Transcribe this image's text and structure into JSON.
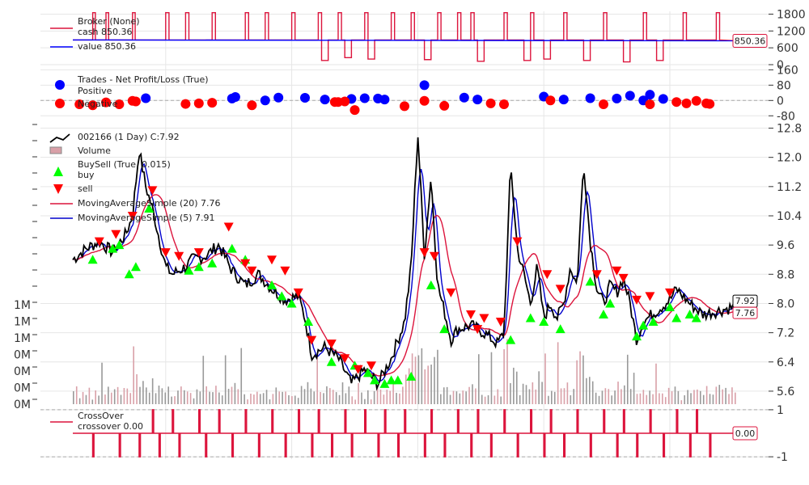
{
  "chart_data": {
    "type": "line",
    "title": "",
    "palette": {
      "broker": "#dc143c",
      "value": "#0000ff",
      "positive": "#0000ff",
      "negative": "#ff0000",
      "price": "#000000",
      "sma20": "#dc143c",
      "sma5": "#0000cc",
      "buy": "#00ff00",
      "sell": "#ff0000",
      "volume_up": "#d9a0a8",
      "volume_down": "#999999",
      "crossover": "#dc143c"
    },
    "broker_panel": {
      "ylim": [
        0,
        1900
      ],
      "yticks": [
        "0",
        "600",
        "1200",
        "1800"
      ],
      "legend": [
        "Broker (None)",
        "cash 850.36",
        "value 850.36"
      ],
      "last_label": "850.36",
      "cash_base": 880,
      "cash_end": 850.36,
      "cash_spikes": [
        [
          0.03,
          0.034,
          1850
        ],
        [
          0.05,
          0.054,
          1850
        ],
        [
          0.09,
          0.094,
          1850
        ],
        [
          0.14,
          0.145,
          1850
        ],
        [
          0.17,
          0.175,
          1850
        ],
        [
          0.21,
          0.215,
          1850
        ],
        [
          0.26,
          0.265,
          1850
        ],
        [
          0.29,
          0.295,
          1850
        ],
        [
          0.33,
          0.335,
          1850
        ],
        [
          0.37,
          0.375,
          1850
        ],
        [
          0.48,
          0.485,
          1850
        ],
        [
          0.55,
          0.555,
          1850
        ],
        [
          0.6,
          0.605,
          1850
        ],
        [
          0.65,
          0.655,
          1850
        ],
        [
          0.69,
          0.695,
          1850
        ],
        [
          0.74,
          0.745,
          1850
        ],
        [
          0.8,
          0.805,
          1850
        ],
        [
          0.86,
          0.865,
          1850
        ],
        [
          0.92,
          0.925,
          1850
        ],
        [
          0.97,
          0.975,
          1850
        ],
        [
          0.4,
          0.405,
          1850
        ],
        [
          0.44,
          0.445,
          1850
        ],
        [
          0.51,
          0.515,
          1850
        ],
        [
          0.58,
          0.585,
          1850
        ]
      ],
      "cash_dips": [
        [
          0.375,
          0.385,
          150
        ],
        [
          0.41,
          0.42,
          250
        ],
        [
          0.445,
          0.455,
          200
        ],
        [
          0.53,
          0.54,
          180
        ],
        [
          0.61,
          0.62,
          120
        ],
        [
          0.68,
          0.69,
          150
        ],
        [
          0.71,
          0.72,
          200
        ],
        [
          0.77,
          0.78,
          150
        ],
        [
          0.83,
          0.84,
          100
        ],
        [
          0.88,
          0.89,
          150
        ]
      ]
    },
    "trades_panel": {
      "ylim": [
        -100,
        170
      ],
      "yticks": [
        "-80",
        "0",
        "80",
        "160"
      ],
      "legend": [
        "Trades - Net Profit/Loss (True)",
        "Positive",
        "Negative"
      ],
      "positive": [
        [
          0.11,
          12
        ],
        [
          0.24,
          10
        ],
        [
          0.245,
          18
        ],
        [
          0.29,
          0
        ],
        [
          0.31,
          15
        ],
        [
          0.35,
          14
        ],
        [
          0.38,
          5
        ],
        [
          0.42,
          8
        ],
        [
          0.44,
          12
        ],
        [
          0.46,
          10
        ],
        [
          0.47,
          5
        ],
        [
          0.53,
          80
        ],
        [
          0.59,
          15
        ],
        [
          0.61,
          5
        ],
        [
          0.71,
          20
        ],
        [
          0.74,
          5
        ],
        [
          0.78,
          12
        ],
        [
          0.82,
          10
        ],
        [
          0.84,
          25
        ],
        [
          0.86,
          0
        ],
        [
          0.87,
          30
        ],
        [
          0.89,
          8
        ]
      ],
      "negative": [
        [
          0.01,
          -20
        ],
        [
          0.03,
          -25
        ],
        [
          0.05,
          -10
        ],
        [
          0.07,
          -20
        ],
        [
          0.09,
          -2
        ],
        [
          0.095,
          -5
        ],
        [
          0.17,
          -18
        ],
        [
          0.19,
          -15
        ],
        [
          0.21,
          -12
        ],
        [
          0.27,
          -25
        ],
        [
          0.395,
          -8
        ],
        [
          0.4,
          -8
        ],
        [
          0.41,
          -5
        ],
        [
          0.425,
          -50
        ],
        [
          0.5,
          -30
        ],
        [
          0.53,
          -2
        ],
        [
          0.56,
          -28
        ],
        [
          0.63,
          -15
        ],
        [
          0.65,
          -20
        ],
        [
          0.72,
          0
        ],
        [
          0.8,
          -20
        ],
        [
          0.87,
          -20
        ],
        [
          0.91,
          -8
        ],
        [
          0.925,
          -15
        ],
        [
          0.94,
          -2
        ],
        [
          0.955,
          -15
        ],
        [
          0.96,
          -18
        ]
      ]
    },
    "price_panel": {
      "ylim": [
        5.2,
        12.9
      ],
      "yticks": [
        "5.6",
        "6.4",
        "7.2",
        "8.0",
        "8.8",
        "9.6",
        "10.4",
        "11.2",
        "12.0",
        "12.8"
      ],
      "volume_ticks": [
        "0M",
        "0M",
        "0M",
        "0M",
        "1M",
        "1M",
        "1M"
      ],
      "legend": [
        "002166 (1 Day) C:7.92",
        "Volume",
        "BuySell (True, 0.015)",
        "buy",
        "sell",
        "MovingAverageSimple (20) 7.76",
        "MovingAverageSimple (5) 7.91"
      ],
      "last_close_label": "7.92",
      "last_sma20_label": "7.76",
      "close_anchors": [
        [
          0,
          9.2
        ],
        [
          0.02,
          9.5
        ],
        [
          0.04,
          9.7
        ],
        [
          0.06,
          9.4
        ],
        [
          0.08,
          9.9
        ],
        [
          0.09,
          10.4
        ],
        [
          0.1,
          12.2
        ],
        [
          0.11,
          11.2
        ],
        [
          0.12,
          10.6
        ],
        [
          0.13,
          9.8
        ],
        [
          0.14,
          9.0
        ],
        [
          0.15,
          8.8
        ],
        [
          0.17,
          9.0
        ],
        [
          0.18,
          9.2
        ],
        [
          0.2,
          9.3
        ],
        [
          0.22,
          9.6
        ],
        [
          0.24,
          8.9
        ],
        [
          0.26,
          8.5
        ],
        [
          0.28,
          8.8
        ],
        [
          0.3,
          8.4
        ],
        [
          0.32,
          8.1
        ],
        [
          0.34,
          8.2
        ],
        [
          0.35,
          7.6
        ],
        [
          0.36,
          6.6
        ],
        [
          0.38,
          6.8
        ],
        [
          0.4,
          6.5
        ],
        [
          0.42,
          5.8
        ],
        [
          0.44,
          6.2
        ],
        [
          0.46,
          5.8
        ],
        [
          0.48,
          6.5
        ],
        [
          0.5,
          7.5
        ],
        [
          0.51,
          9.0
        ],
        [
          0.52,
          12.7
        ],
        [
          0.53,
          9.3
        ],
        [
          0.54,
          11.5
        ],
        [
          0.55,
          8.5
        ],
        [
          0.56,
          7.8
        ],
        [
          0.57,
          7.0
        ],
        [
          0.58,
          7.3
        ],
        [
          0.6,
          7.4
        ],
        [
          0.62,
          7.2
        ],
        [
          0.64,
          6.9
        ],
        [
          0.65,
          7.2
        ],
        [
          0.66,
          11.8
        ],
        [
          0.67,
          9.5
        ],
        [
          0.68,
          8.8
        ],
        [
          0.69,
          8.0
        ],
        [
          0.7,
          9.0
        ],
        [
          0.71,
          7.6
        ],
        [
          0.72,
          8.0
        ],
        [
          0.73,
          7.6
        ],
        [
          0.74,
          8.0
        ],
        [
          0.75,
          9.0
        ],
        [
          0.76,
          8.5
        ],
        [
          0.77,
          11.9
        ],
        [
          0.78,
          9.7
        ],
        [
          0.79,
          8.4
        ],
        [
          0.8,
          8.0
        ],
        [
          0.81,
          8.5
        ],
        [
          0.82,
          8.3
        ],
        [
          0.83,
          8.7
        ],
        [
          0.84,
          8.0
        ],
        [
          0.85,
          7.0
        ],
        [
          0.86,
          7.5
        ],
        [
          0.88,
          7.8
        ],
        [
          0.9,
          8.1
        ],
        [
          0.91,
          8.4
        ],
        [
          0.93,
          8.0
        ],
        [
          0.95,
          7.7
        ],
        [
          1.0,
          7.92
        ]
      ],
      "buy_markers": [
        [
          0.03,
          9.2
        ],
        [
          0.06,
          9.5
        ],
        [
          0.07,
          9.6
        ],
        [
          0.085,
          8.8
        ],
        [
          0.095,
          9.0
        ],
        [
          0.115,
          10.6
        ],
        [
          0.175,
          8.9
        ],
        [
          0.19,
          9.0
        ],
        [
          0.21,
          9.1
        ],
        [
          0.24,
          9.5
        ],
        [
          0.26,
          9.2
        ],
        [
          0.3,
          8.5
        ],
        [
          0.315,
          8.2
        ],
        [
          0.33,
          8.0
        ],
        [
          0.355,
          7.5
        ],
        [
          0.39,
          6.4
        ],
        [
          0.425,
          6.3
        ],
        [
          0.445,
          6.1
        ],
        [
          0.455,
          5.9
        ],
        [
          0.47,
          5.8
        ],
        [
          0.48,
          5.9
        ],
        [
          0.49,
          5.9
        ],
        [
          0.51,
          6.0
        ],
        [
          0.54,
          8.5
        ],
        [
          0.56,
          7.3
        ],
        [
          0.66,
          7.0
        ],
        [
          0.69,
          7.6
        ],
        [
          0.71,
          7.5
        ],
        [
          0.735,
          7.3
        ],
        [
          0.78,
          8.6
        ],
        [
          0.8,
          7.7
        ],
        [
          0.81,
          8.0
        ],
        [
          0.85,
          7.1
        ],
        [
          0.86,
          7.4
        ],
        [
          0.875,
          7.5
        ],
        [
          0.9,
          7.9
        ],
        [
          0.91,
          7.6
        ],
        [
          0.93,
          7.7
        ],
        [
          0.94,
          7.6
        ]
      ],
      "sell_markers": [
        [
          0.04,
          9.7
        ],
        [
          0.065,
          9.9
        ],
        [
          0.09,
          10.4
        ],
        [
          0.12,
          11.1
        ],
        [
          0.14,
          9.4
        ],
        [
          0.16,
          9.3
        ],
        [
          0.19,
          9.4
        ],
        [
          0.235,
          10.1
        ],
        [
          0.26,
          9.1
        ],
        [
          0.27,
          8.9
        ],
        [
          0.3,
          9.2
        ],
        [
          0.32,
          8.9
        ],
        [
          0.34,
          8.3
        ],
        [
          0.36,
          7.0
        ],
        [
          0.39,
          6.9
        ],
        [
          0.41,
          6.5
        ],
        [
          0.43,
          6.2
        ],
        [
          0.45,
          6.3
        ],
        [
          0.53,
          9.4
        ],
        [
          0.545,
          9.3
        ],
        [
          0.57,
          8.3
        ],
        [
          0.6,
          7.7
        ],
        [
          0.61,
          7.3
        ],
        [
          0.62,
          7.6
        ],
        [
          0.645,
          7.5
        ],
        [
          0.67,
          9.7
        ],
        [
          0.715,
          8.8
        ],
        [
          0.735,
          8.4
        ],
        [
          0.79,
          8.8
        ],
        [
          0.82,
          8.9
        ],
        [
          0.83,
          8.7
        ],
        [
          0.85,
          8.1
        ],
        [
          0.87,
          8.2
        ],
        [
          0.9,
          8.3
        ]
      ]
    },
    "crossover_panel": {
      "ylim": [
        -1.1,
        1.1
      ],
      "yticks": [
        "-1",
        "1"
      ],
      "legend": [
        "CrossOver",
        "crossover 0.00"
      ],
      "last_label": "0.00",
      "up_x": [
        0.12,
        0.15,
        0.19,
        0.22,
        0.26,
        0.3,
        0.34,
        0.37,
        0.41,
        0.44,
        0.47,
        0.5,
        0.54,
        0.58,
        0.61,
        0.65,
        0.69,
        0.72,
        0.76,
        0.8,
        0.83,
        0.87,
        0.91,
        0.94
      ],
      "down_x": [
        0.03,
        0.07,
        0.1,
        0.13,
        0.16,
        0.2,
        0.24,
        0.28,
        0.32,
        0.36,
        0.39,
        0.42,
        0.46,
        0.49,
        0.53,
        0.56,
        0.6,
        0.63,
        0.67,
        0.71,
        0.74,
        0.78,
        0.82,
        0.85,
        0.89,
        0.93,
        0.96
      ]
    }
  }
}
